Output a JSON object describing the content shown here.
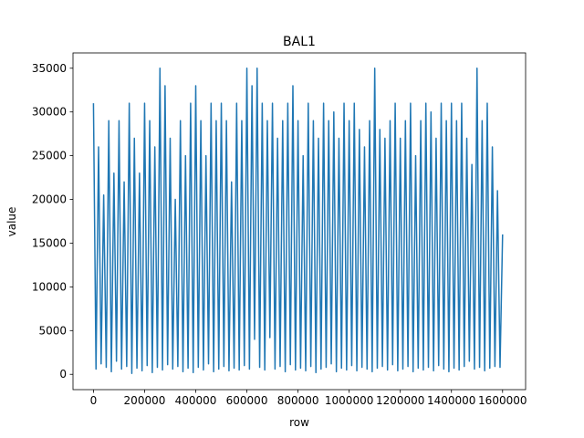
{
  "chart_data": {
    "type": "line",
    "title": "BAL1",
    "x_label": "row",
    "y_label": "value",
    "color": "#1f77b4",
    "x": [
      0,
      10000,
      20000,
      30000,
      40000,
      50000,
      60000,
      70000,
      80000,
      90000,
      100000,
      110000,
      120000,
      130000,
      140000,
      150000,
      160000,
      170000,
      180000,
      190000,
      200000,
      210000,
      220000,
      230000,
      240000,
      250000,
      260000,
      270000,
      280000,
      290000,
      300000,
      310000,
      320000,
      330000,
      340000,
      350000,
      360000,
      370000,
      380000,
      390000,
      400000,
      410000,
      420000,
      430000,
      440000,
      450000,
      460000,
      470000,
      480000,
      490000,
      500000,
      510000,
      520000,
      530000,
      540000,
      550000,
      560000,
      570000,
      580000,
      590000,
      600000,
      610000,
      620000,
      630000,
      640000,
      650000,
      660000,
      670000,
      680000,
      690000,
      700000,
      710000,
      720000,
      730000,
      740000,
      750000,
      760000,
      770000,
      780000,
      790000,
      800000,
      810000,
      820000,
      830000,
      840000,
      850000,
      860000,
      870000,
      880000,
      890000,
      900000,
      910000,
      920000,
      930000,
      940000,
      950000,
      960000,
      970000,
      980000,
      990000,
      1000000,
      1010000,
      1020000,
      1030000,
      1040000,
      1050000,
      1060000,
      1070000,
      1080000,
      1090000,
      1100000,
      1110000,
      1120000,
      1130000,
      1140000,
      1150000,
      1160000,
      1170000,
      1180000,
      1190000,
      1200000,
      1210000,
      1220000,
      1230000,
      1240000,
      1250000,
      1260000,
      1270000,
      1280000,
      1290000,
      1300000,
      1310000,
      1320000,
      1330000,
      1340000,
      1350000,
      1360000,
      1370000,
      1380000,
      1390000,
      1400000,
      1410000,
      1420000,
      1430000,
      1440000,
      1450000,
      1460000,
      1470000,
      1480000,
      1490000,
      1500000,
      1510000,
      1520000,
      1530000,
      1540000,
      1550000,
      1560000,
      1570000,
      1580000,
      1590000,
      1600000
    ],
    "values": [
      31000,
      600,
      26000,
      1200,
      20500,
      800,
      29000,
      300,
      23000,
      1500,
      29000,
      600,
      22000,
      900,
      31000,
      100,
      27000,
      700,
      23000,
      400,
      31000,
      1000,
      29000,
      200,
      26000,
      800,
      35000,
      500,
      33000,
      1100,
      27000,
      600,
      20000,
      900,
      29000,
      300,
      25000,
      700,
      31000,
      200,
      33000,
      800,
      29000,
      500,
      25000,
      1200,
      31000,
      300,
      29000,
      600,
      31000,
      900,
      29000,
      400,
      22000,
      700,
      31000,
      500,
      29000,
      1000,
      35000,
      600,
      33000,
      4000,
      35000,
      800,
      31000,
      500,
      29000,
      4200,
      31000,
      600,
      27000,
      900,
      29000,
      300,
      31000,
      1100,
      33000,
      500,
      29000,
      700,
      25000,
      400,
      31000,
      900,
      29000,
      200,
      27000,
      600,
      31000,
      800,
      29000,
      1200,
      30000,
      300,
      27000,
      700,
      31000,
      500,
      29000,
      1000,
      31000,
      400,
      28000,
      800,
      26000,
      600,
      29000,
      300,
      35000,
      700,
      28000,
      900,
      27000,
      500,
      29000,
      1100,
      31000,
      400,
      27000,
      600,
      29000,
      900,
      31000,
      300,
      25000,
      700,
      29000,
      500,
      31000,
      800,
      30000,
      400,
      27000,
      1000,
      31000,
      600,
      29000,
      300,
      31000,
      700,
      29000,
      500,
      31000,
      900,
      27000,
      1500,
      24000,
      600,
      35000,
      800,
      29000,
      400,
      31000,
      700,
      26000,
      900,
      21000,
      800,
      16000
    ],
    "xlim": [
      -80000,
      1690000
    ],
    "ylim": [
      -1750,
      36750
    ],
    "xticks": [
      0,
      200000,
      400000,
      600000,
      800000,
      1000000,
      1200000,
      1400000,
      1600000
    ],
    "yticks": [
      0,
      5000,
      10000,
      15000,
      20000,
      25000,
      30000,
      35000
    ]
  }
}
